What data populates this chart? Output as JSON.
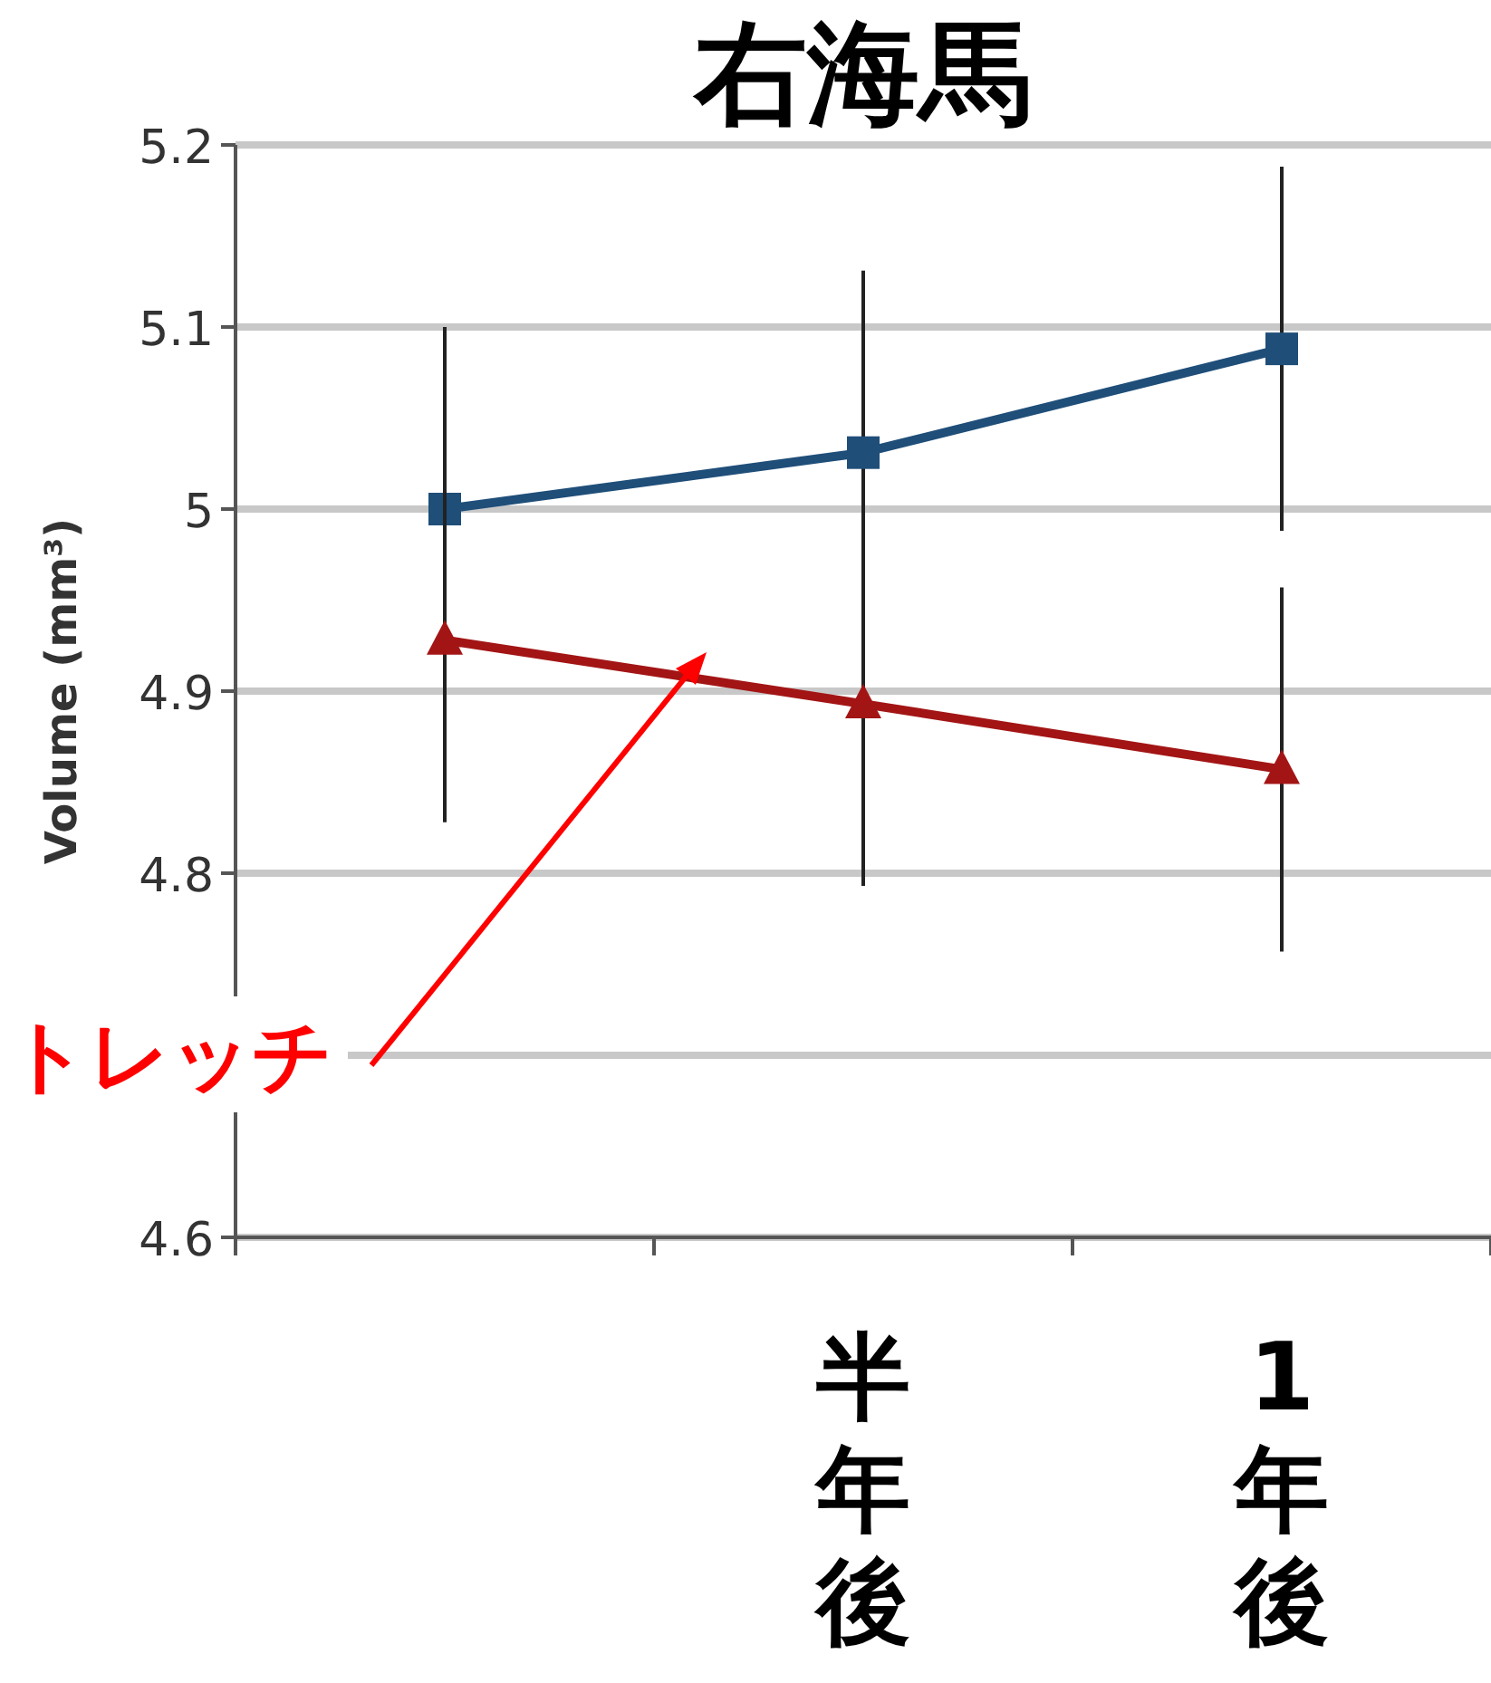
{
  "chart_data": {
    "type": "line",
    "title": "右海馬",
    "ylabel": "Volume (mm³)",
    "categories": [
      null,
      "半年後",
      "1年後"
    ],
    "series": [
      {
        "color": "#1f4e79",
        "marker": "square",
        "values": [
          5.0,
          5.031,
          5.088
        ],
        "errors": [
          0.1,
          0.1,
          0.1
        ]
      },
      {
        "color": "#a31515",
        "marker": "triangle",
        "values": [
          4.928,
          4.893,
          4.857
        ],
        "errors": [
          0.1,
          0.1,
          0.1
        ]
      }
    ],
    "ylim": [
      4.6,
      5.2
    ],
    "yticks": [
      4.6,
      {
        "value": 4.7,
        "label": null
      },
      4.8,
      4.9,
      5,
      5.1,
      5.2
    ],
    "grid": "y",
    "annotations": [
      "トレッチ"
    ]
  }
}
